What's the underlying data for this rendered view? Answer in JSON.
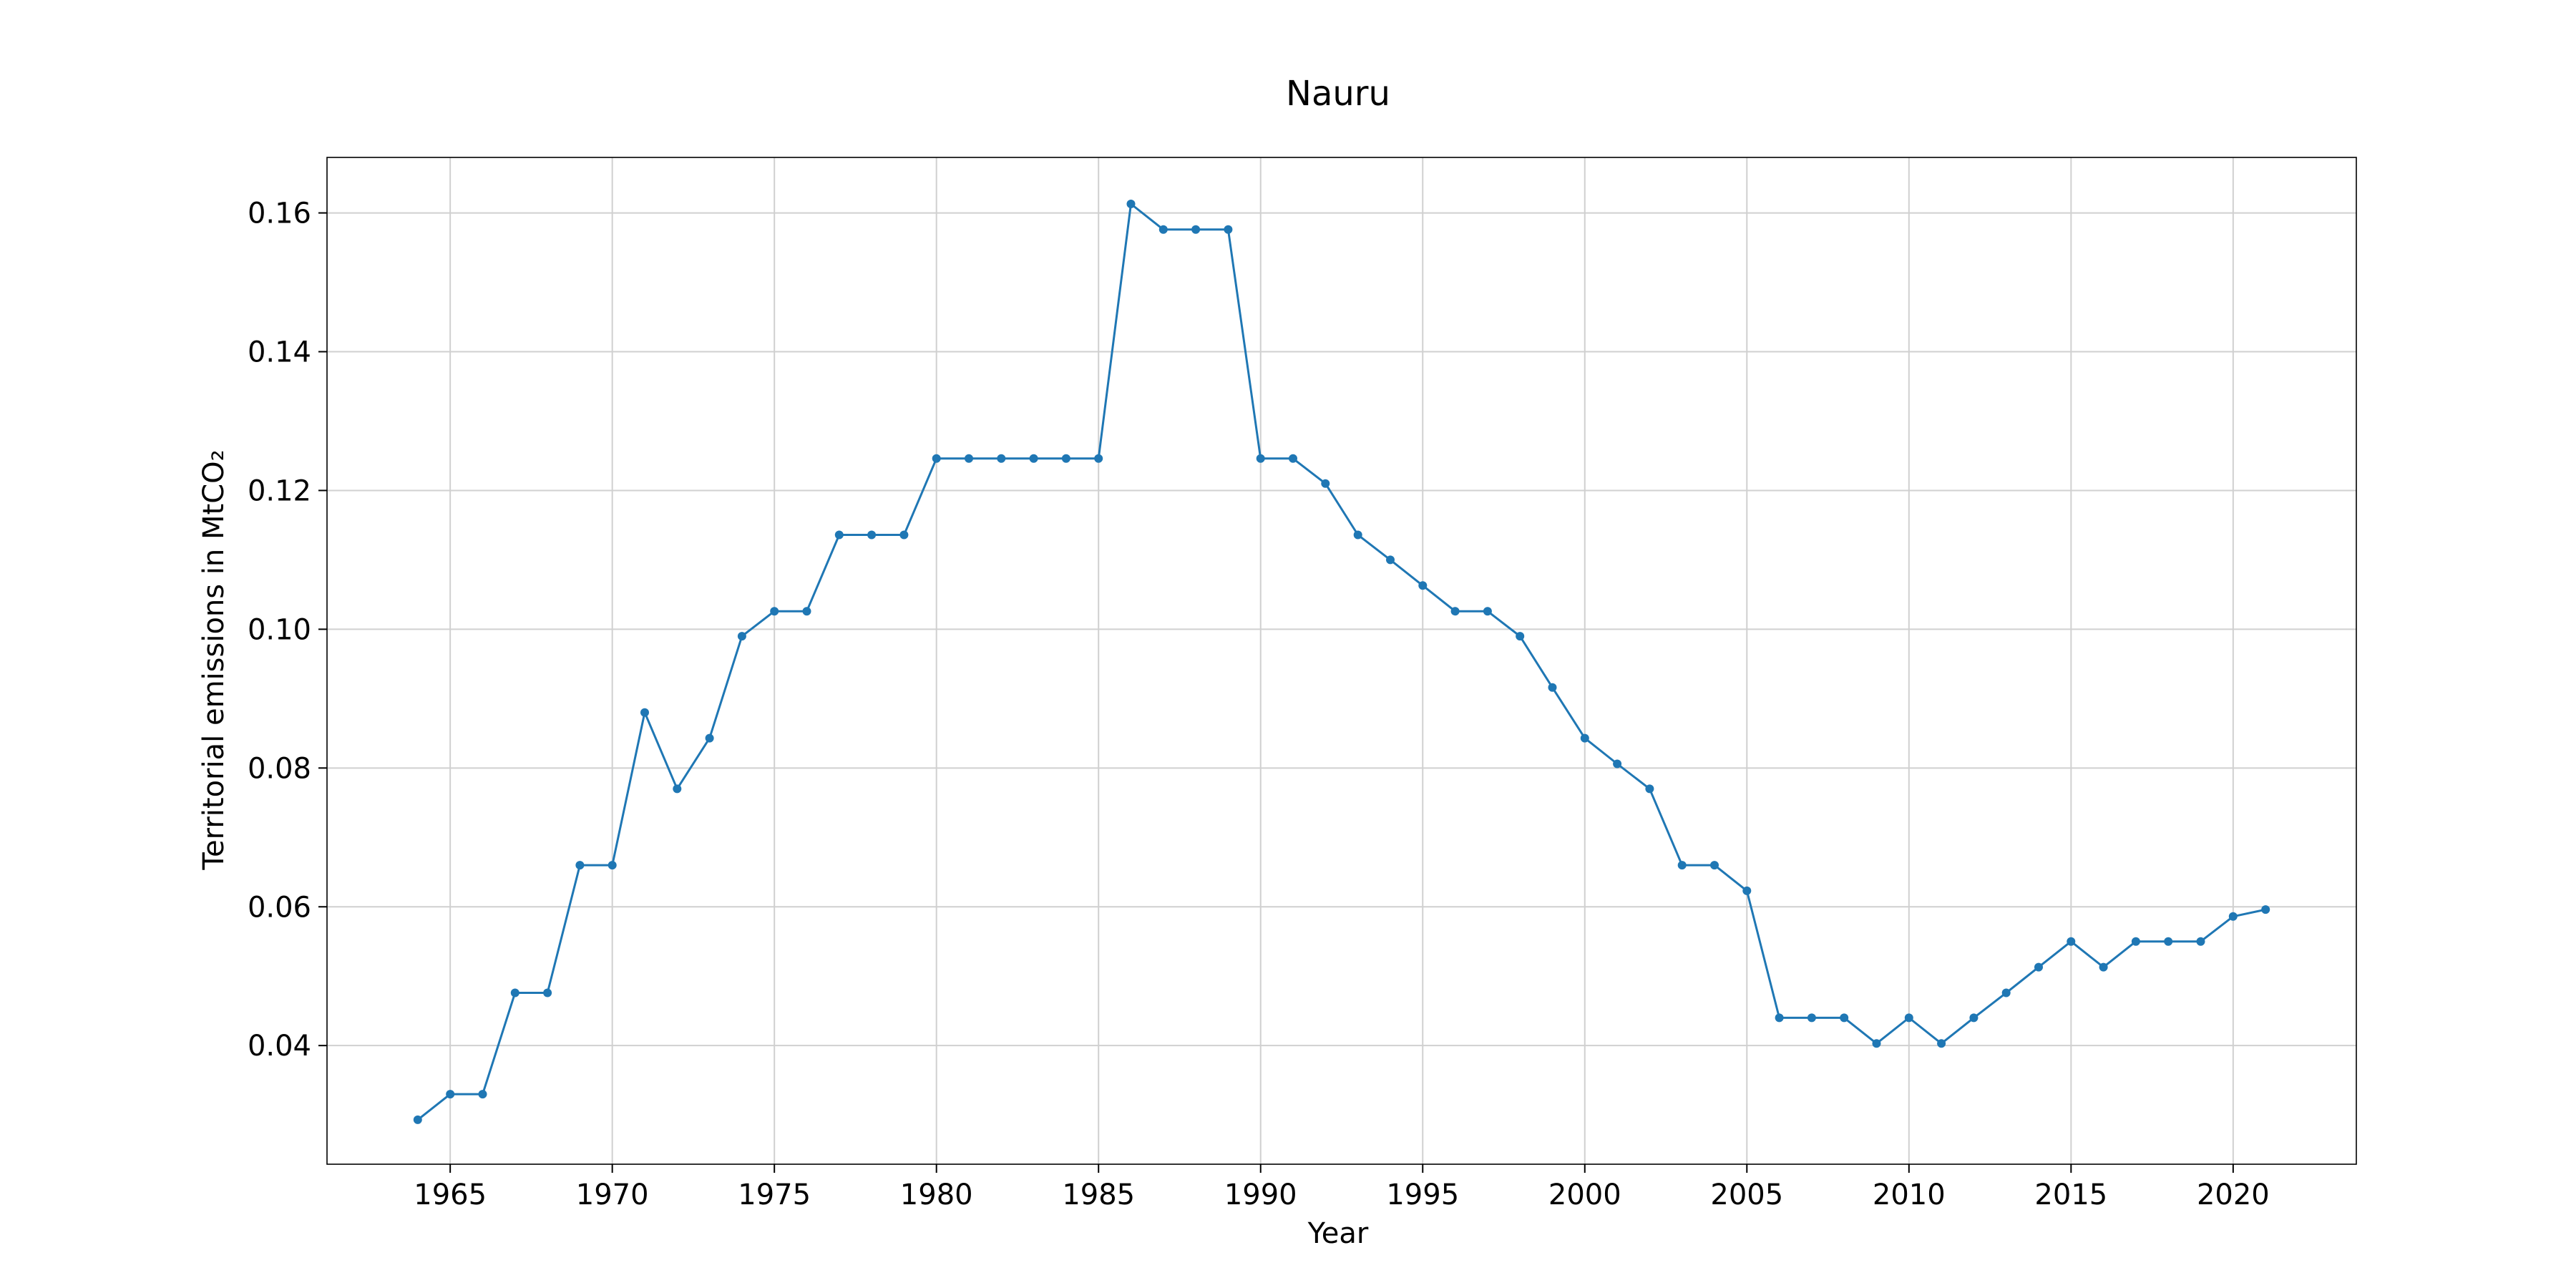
{
  "chart_data": {
    "type": "line",
    "title": "Nauru",
    "xlabel": "Year",
    "ylabel": "Territorial emissions in MtCO₂",
    "xlim": [
      1961.2,
      2023.8
    ],
    "ylim": [
      0.0229,
      0.168
    ],
    "xticks": [
      "1965",
      "1970",
      "1975",
      "1980",
      "1985",
      "1990",
      "1995",
      "2000",
      "2005",
      "2010",
      "2015",
      "2020"
    ],
    "yticks": [
      "0.04",
      "0.06",
      "0.08",
      "0.10",
      "0.12",
      "0.14",
      "0.16"
    ],
    "grid": true,
    "legend": "none",
    "series_color": "#1f77b4",
    "x": [
      1964,
      1965,
      1966,
      1967,
      1968,
      1969,
      1970,
      1971,
      1972,
      1973,
      1974,
      1975,
      1976,
      1977,
      1978,
      1979,
      1980,
      1981,
      1982,
      1983,
      1984,
      1985,
      1986,
      1987,
      1988,
      1989,
      1990,
      1991,
      1992,
      1993,
      1994,
      1995,
      1996,
      1997,
      1998,
      1999,
      2000,
      2001,
      2002,
      2003,
      2004,
      2005,
      2006,
      2007,
      2008,
      2009,
      2010,
      2011,
      2012,
      2013,
      2014,
      2015,
      2016,
      2017,
      2018,
      2019,
      2020,
      2021
    ],
    "y": [
      0.0293,
      0.033,
      0.033,
      0.0476,
      0.0476,
      0.066,
      0.066,
      0.088,
      0.077,
      0.0843,
      0.099,
      0.1026,
      0.1026,
      0.1136,
      0.1136,
      0.1136,
      0.1246,
      0.1246,
      0.1246,
      0.1246,
      0.1246,
      0.1246,
      0.1613,
      0.1576,
      0.1576,
      0.1576,
      0.1246,
      0.1246,
      0.121,
      0.1136,
      0.11,
      0.1063,
      0.1026,
      0.1026,
      0.099,
      0.0916,
      0.0843,
      0.0806,
      0.077,
      0.066,
      0.066,
      0.0623,
      0.044,
      0.044,
      0.044,
      0.0403,
      0.044,
      0.0403,
      0.044,
      0.0476,
      0.0513,
      0.055,
      0.0513,
      0.055,
      0.055,
      0.055,
      0.0586,
      0.0596
    ]
  }
}
